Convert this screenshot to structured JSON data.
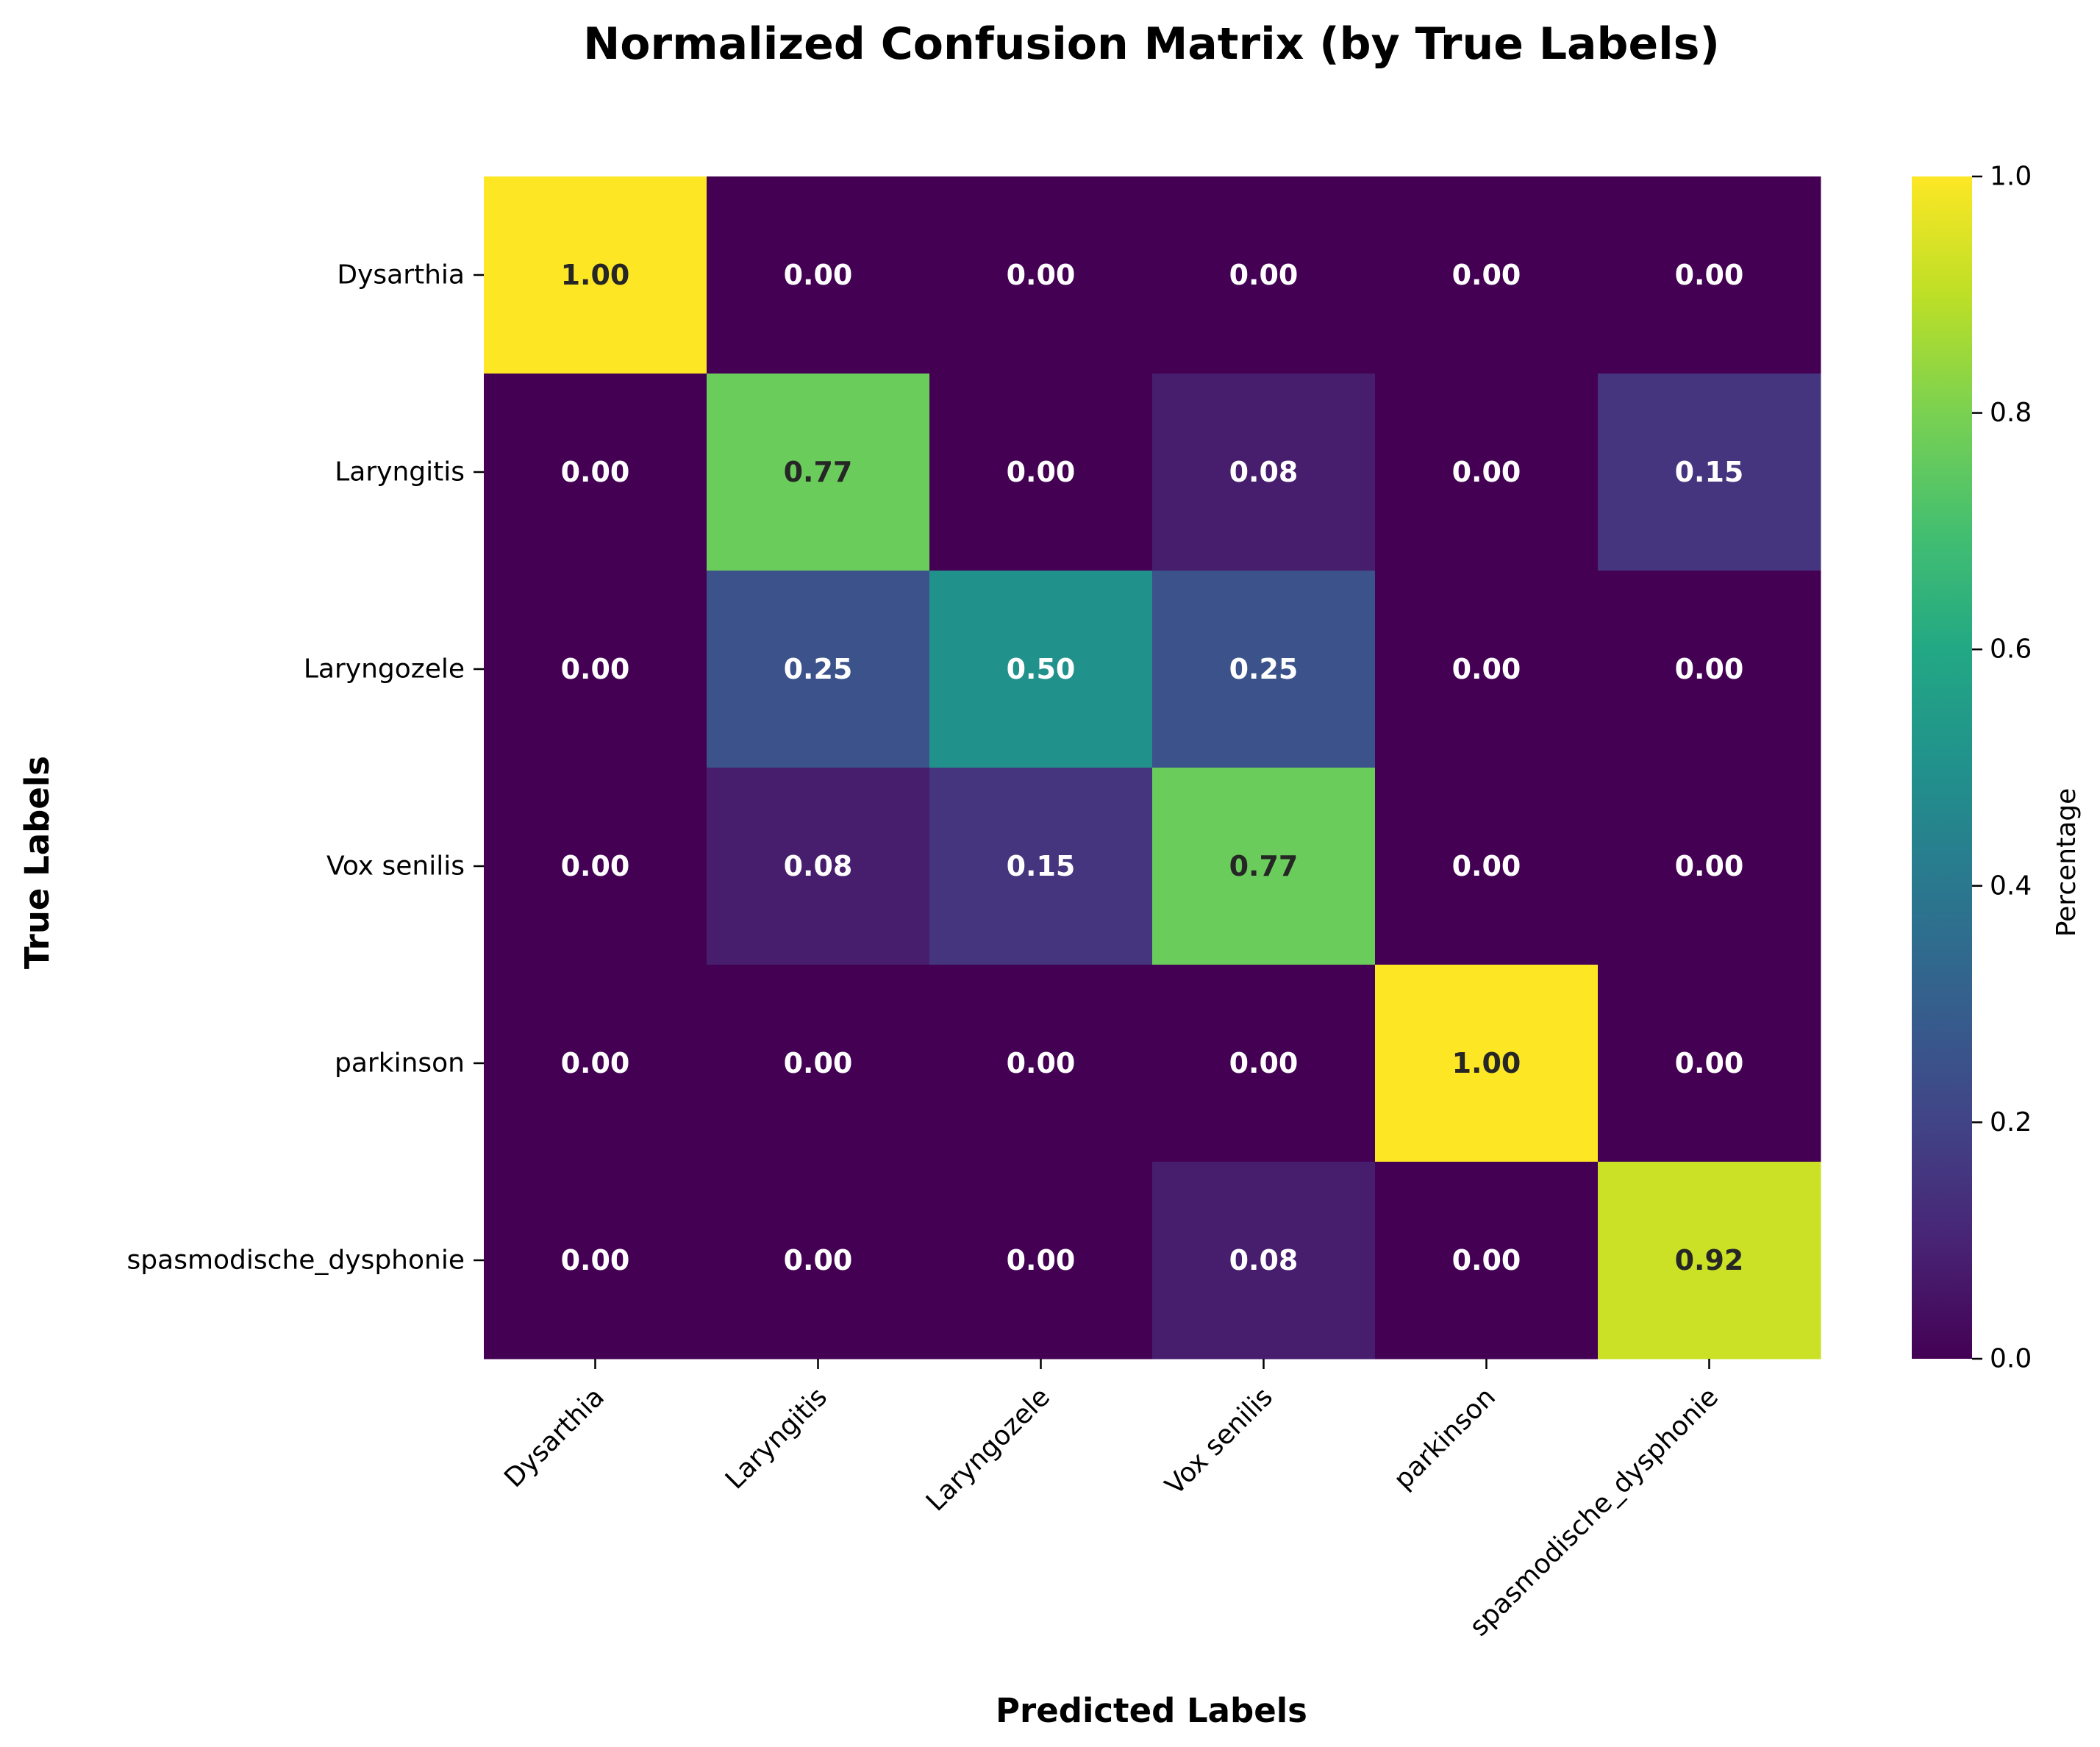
{
  "chart_data": {
    "type": "heatmap",
    "title": "Normalized Confusion Matrix (by True Labels)",
    "xlabel": "Predicted Labels",
    "ylabel": "True Labels",
    "x_categories": [
      "Dysarthia",
      "Laryngitis",
      "Laryngozele",
      "Vox senilis",
      "parkinson",
      "spasmodische_dysphonie"
    ],
    "y_categories": [
      "Dysarthia",
      "Laryngitis",
      "Laryngozele",
      "Vox senilis",
      "parkinson",
      "spasmodische_dysphonie"
    ],
    "values": [
      [
        1.0,
        0.0,
        0.0,
        0.0,
        0.0,
        0.0
      ],
      [
        0.0,
        0.77,
        0.0,
        0.08,
        0.0,
        0.15
      ],
      [
        0.0,
        0.25,
        0.5,
        0.25,
        0.0,
        0.0
      ],
      [
        0.0,
        0.08,
        0.15,
        0.77,
        0.0,
        0.0
      ],
      [
        0.0,
        0.0,
        0.0,
        0.0,
        1.0,
        0.0
      ],
      [
        0.0,
        0.0,
        0.0,
        0.08,
        0.0,
        0.92
      ]
    ],
    "value_format": "0.00",
    "colormap": "viridis",
    "colorbar": {
      "label": "Percentage",
      "range": [
        0,
        1
      ],
      "ticks": [
        "0.0",
        "0.2",
        "0.4",
        "0.6",
        "0.8",
        "1.0"
      ]
    }
  }
}
